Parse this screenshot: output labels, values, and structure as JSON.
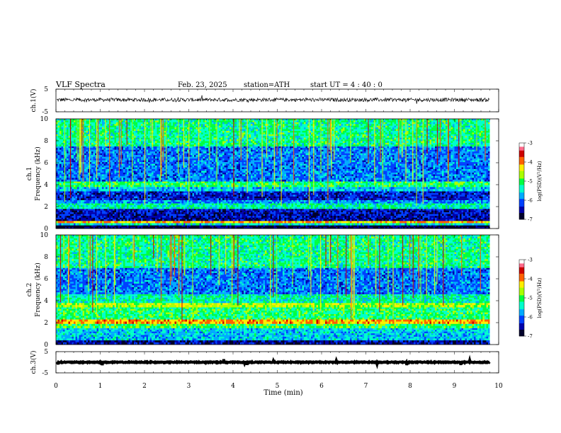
{
  "header": {
    "title": "VLF  Spectra",
    "date": "Feb. 23, 2025",
    "station": "station=ATH",
    "start": "start  UT  =  4 : 40 : 0"
  },
  "colors": {
    "black": "#000000",
    "palette": [
      "#00002a",
      "#0000aa",
      "#0040ff",
      "#00aaff",
      "#00ffcc",
      "#00ff40",
      "#aaff00",
      "#ffee00",
      "#ff6000",
      "#cc0000",
      "#ff6a8a",
      "#ffffff"
    ]
  },
  "chart_data": [
    {
      "type": "line",
      "name": "ch1-waveform",
      "ylabel": "ch.1(V)",
      "ylim": [
        -5,
        5
      ],
      "yticks": [
        5,
        -5
      ],
      "mean": 0.3,
      "noise_amplitude": 0.8
    },
    {
      "type": "heatmap",
      "name": "ch1-spectrogram",
      "ylabel": "ch.1\nFrequency (kHz)",
      "ylabel_lines": [
        "ch.1",
        "Frequency  (kHz)"
      ],
      "ylim": [
        0,
        10
      ],
      "yticks": [
        0,
        2,
        4,
        6,
        8,
        10
      ],
      "xlim": [
        0,
        9.8
      ],
      "colorbar": {
        "label": "log(PSD)(V²/Hz)",
        "range": [
          -7,
          -3
        ],
        "ticks": [
          -3,
          -4,
          -5,
          -6,
          -7
        ]
      },
      "bands": [
        {
          "from": 0.0,
          "to": 0.3,
          "level": -6.8
        },
        {
          "from": 0.3,
          "to": 0.5,
          "level": -5.5
        },
        {
          "from": 0.5,
          "to": 0.7,
          "level": -4.2
        },
        {
          "from": 0.7,
          "to": 1.0,
          "level": -6.5
        },
        {
          "from": 1.0,
          "to": 1.8,
          "level": -6.4
        },
        {
          "from": 1.8,
          "to": 2.3,
          "level": -5.3
        },
        {
          "from": 2.3,
          "to": 2.6,
          "level": -5.8
        },
        {
          "from": 2.6,
          "to": 3.4,
          "level": -6.3
        },
        {
          "from": 3.4,
          "to": 3.8,
          "level": -5.6
        },
        {
          "from": 3.8,
          "to": 4.3,
          "level": -5.1
        },
        {
          "from": 4.3,
          "to": 7.5,
          "level": -5.9
        },
        {
          "from": 7.5,
          "to": 10.0,
          "level": -5.2
        }
      ]
    },
    {
      "type": "heatmap",
      "name": "ch2-spectrogram",
      "ylabel_lines": [
        "ch.2",
        "Frequency  (kHz)"
      ],
      "ylim": [
        0,
        10
      ],
      "yticks": [
        0,
        2,
        4,
        6,
        8,
        10
      ],
      "xlim": [
        0,
        9.8
      ],
      "colorbar": {
        "label": "log(PSD)(V²/Hz)",
        "range": [
          -7,
          -3
        ],
        "ticks": [
          -3,
          -4,
          -5,
          -6,
          -7
        ]
      },
      "bands": [
        {
          "from": 0.0,
          "to": 0.4,
          "level": -6.5
        },
        {
          "from": 0.4,
          "to": 1.5,
          "level": -5.6
        },
        {
          "from": 1.5,
          "to": 1.9,
          "level": -5.0
        },
        {
          "from": 1.9,
          "to": 2.3,
          "level": -4.1
        },
        {
          "from": 2.3,
          "to": 3.4,
          "level": -5.1
        },
        {
          "from": 3.4,
          "to": 3.8,
          "level": -4.6
        },
        {
          "from": 3.8,
          "to": 4.6,
          "level": -5.3
        },
        {
          "from": 4.6,
          "to": 7.0,
          "level": -5.9
        },
        {
          "from": 7.0,
          "to": 10.0,
          "level": -5.2
        }
      ]
    },
    {
      "type": "line",
      "name": "ch3-waveform",
      "ylabel": "ch.3(V)",
      "ylim": [
        -5,
        5
      ],
      "yticks": [
        5,
        -5
      ],
      "mean": 0.0,
      "noise_amplitude": 0.2
    }
  ],
  "x_axis": {
    "xlabel": "Time  (min)",
    "xlim": [
      0,
      10
    ],
    "ticks": [
      0,
      1,
      2,
      3,
      4,
      5,
      6,
      7,
      8,
      9,
      10
    ]
  }
}
